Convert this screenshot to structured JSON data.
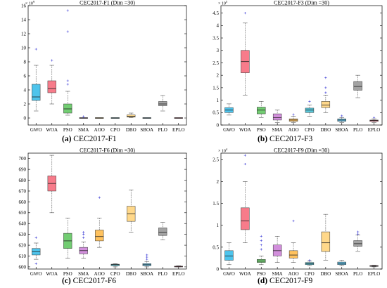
{
  "colors": {
    "GWO": "#4ec4ec",
    "WOA": "#f77b8a",
    "PSO": "#72cd72",
    "SMA": "#d28fdc",
    "AOO": "#ffc25e",
    "CPO": "#58c6d8",
    "DBO": "#ffd88a",
    "SBOA": "#5fbfe6",
    "PLO": "#a3a3a3",
    "EPLO": "#e55670",
    "outlier": "#3b3bd6",
    "median": "#222222"
  },
  "chart_data": [
    {
      "type": "box",
      "title": "CEC2017-F1 (Dim =30)",
      "caption_letter": "(a)",
      "caption_text": "CEC2017-F1",
      "exponent_base": "× 10",
      "exponent_power": "9",
      "categories": [
        "GWO",
        "WOA",
        "PSO",
        "SMA",
        "AOO",
        "CPO",
        "DBO",
        "SBOA",
        "PLO",
        "EPLO"
      ],
      "ylim": [
        -1,
        16
      ],
      "yticks": [
        0,
        2,
        4,
        6,
        8,
        10,
        12,
        14,
        16
      ],
      "ytick_labels": [
        "0",
        "2",
        "4",
        "6",
        "8",
        "10",
        "12",
        "14",
        "16"
      ],
      "boxes": [
        {
          "min": 1.0,
          "q1": 2.5,
          "median": 3.0,
          "q3": 4.8,
          "max": 7.5,
          "outliers": [
            9.8
          ]
        },
        {
          "min": 2.0,
          "q1": 3.6,
          "median": 4.2,
          "q3": 5.3,
          "max": 7.5,
          "outliers": [
            8.2
          ]
        },
        {
          "min": 0.4,
          "q1": 0.7,
          "median": 1.3,
          "q3": 2.0,
          "max": 3.8,
          "outliers": [
            4.8,
            5.3,
            12.3,
            15.3
          ]
        },
        {
          "min": 0.0,
          "q1": 0.0,
          "median": 0.0,
          "q3": 0.0,
          "max": 0.0,
          "outliers": [
            0.2
          ]
        },
        {
          "min": 0.0,
          "q1": 0.0,
          "median": 0.0,
          "q3": 0.0,
          "max": 0.0,
          "outliers": []
        },
        {
          "min": 0.0,
          "q1": 0.0,
          "median": 0.0,
          "q3": 0.0,
          "max": 0.0,
          "outliers": []
        },
        {
          "min": 0.05,
          "q1": 0.12,
          "median": 0.25,
          "q3": 0.45,
          "max": 0.7,
          "outliers": []
        },
        {
          "min": 0.0,
          "q1": 0.0,
          "median": 0.0,
          "q3": 0.0,
          "max": 0.0,
          "outliers": []
        },
        {
          "min": 1.0,
          "q1": 1.75,
          "median": 2.0,
          "q3": 2.35,
          "max": 3.2,
          "outliers": []
        },
        {
          "min": 0.0,
          "q1": 0.0,
          "median": 0.0,
          "q3": 0.0,
          "max": 0.0,
          "outliers": []
        }
      ]
    },
    {
      "type": "box",
      "title": "CEC2017-F3 (Dim =30)",
      "caption_letter": "(b)",
      "caption_text": "CEC2017-F3",
      "exponent_base": "× 10",
      "exponent_power": "5",
      "categories": [
        "GWO",
        "WOA",
        "PSO",
        "SMA",
        "AOO",
        "CPO",
        "DBO",
        "SBOA",
        "PLO",
        "EPLO"
      ],
      "ylim": [
        0,
        4.8
      ],
      "yticks": [
        0,
        0.5,
        1,
        1.5,
        2,
        2.5,
        3,
        3.5,
        4,
        4.5
      ],
      "ytick_labels": [
        "0",
        "0.5",
        "1",
        "1.5",
        "2",
        "2.5",
        "3",
        "3.5",
        "4",
        "4.5"
      ],
      "boxes": [
        {
          "min": 0.4,
          "q1": 0.5,
          "median": 0.6,
          "q3": 0.7,
          "max": 0.85,
          "outliers": []
        },
        {
          "min": 1.2,
          "q1": 2.1,
          "median": 2.55,
          "q3": 3.0,
          "max": 4.1,
          "outliers": [
            4.5
          ]
        },
        {
          "min": 0.3,
          "q1": 0.45,
          "median": 0.6,
          "q3": 0.72,
          "max": 0.95,
          "outliers": []
        },
        {
          "min": 0.1,
          "q1": 0.2,
          "median": 0.3,
          "q3": 0.45,
          "max": 0.6,
          "outliers": []
        },
        {
          "min": 0.1,
          "q1": 0.15,
          "median": 0.2,
          "q3": 0.25,
          "max": 0.35,
          "outliers": [
            0.42
          ]
        },
        {
          "min": 0.35,
          "q1": 0.5,
          "median": 0.6,
          "q3": 0.68,
          "max": 0.8,
          "outliers": [
            0.95
          ]
        },
        {
          "min": 0.5,
          "q1": 0.7,
          "median": 0.8,
          "q3": 0.95,
          "max": 1.2,
          "outliers": [
            1.3,
            1.5,
            1.9
          ]
        },
        {
          "min": 0.1,
          "q1": 0.15,
          "median": 0.2,
          "q3": 0.25,
          "max": 0.3,
          "outliers": [
            0.37
          ]
        },
        {
          "min": 1.1,
          "q1": 1.4,
          "median": 1.55,
          "q3": 1.75,
          "max": 2.0,
          "outliers": []
        },
        {
          "min": 0.1,
          "q1": 0.15,
          "median": 0.18,
          "q3": 0.2,
          "max": 0.25,
          "outliers": [
            0.3
          ]
        }
      ]
    },
    {
      "type": "box",
      "title": "CEC2017-F6 (Dim =30)",
      "caption_letter": "(c)",
      "caption_text": "CEC2017-F6",
      "exponent_base": "",
      "exponent_power": "",
      "categories": [
        "GWO",
        "WOA",
        "PSO",
        "SMA",
        "AOO",
        "CPO",
        "DBO",
        "SBOA",
        "PLO",
        "EPLO"
      ],
      "ylim": [
        598,
        705
      ],
      "yticks": [
        600,
        610,
        620,
        630,
        640,
        650,
        660,
        670,
        680,
        690,
        700
      ],
      "ytick_labels": [
        "600",
        "610",
        "620",
        "630",
        "640",
        "650",
        "660",
        "670",
        "680",
        "690",
        "700"
      ],
      "boxes": [
        {
          "min": 607,
          "q1": 611,
          "median": 614,
          "q3": 617,
          "max": 622,
          "outliers": [
            627,
            603
          ]
        },
        {
          "min": 650,
          "q1": 670,
          "median": 677,
          "q3": 684,
          "max": 703,
          "outliers": []
        },
        {
          "min": 608,
          "q1": 617,
          "median": 624,
          "q3": 631,
          "max": 645,
          "outliers": []
        },
        {
          "min": 608,
          "q1": 612,
          "median": 615,
          "q3": 618,
          "max": 623,
          "outliers": [
            627,
            630,
            632
          ]
        },
        {
          "min": 618,
          "q1": 624,
          "median": 628,
          "q3": 634,
          "max": 645,
          "outliers": [
            664
          ]
        },
        {
          "min": 600,
          "q1": 601,
          "median": 602,
          "q3": 602.5,
          "max": 603,
          "outliers": []
        },
        {
          "min": 632,
          "q1": 642,
          "median": 649,
          "q3": 656,
          "max": 671,
          "outliers": []
        },
        {
          "min": 600,
          "q1": 601,
          "median": 602,
          "q3": 603,
          "max": 605,
          "outliers": [
            607,
            609,
            611
          ]
        },
        {
          "min": 625,
          "q1": 629,
          "median": 632,
          "q3": 636,
          "max": 641,
          "outliers": []
        },
        {
          "min": 600,
          "q1": 600.1,
          "median": 600.3,
          "q3": 600.5,
          "max": 601,
          "outliers": []
        }
      ]
    },
    {
      "type": "box",
      "title": "CEC2017-F9 (Dim =30)",
      "caption_letter": "(d)",
      "caption_text": "CEC2017-F9",
      "exponent_base": "× 10",
      "exponent_power": "4",
      "categories": [
        "GWO",
        "WOA",
        "PSO",
        "SMA",
        "AOO",
        "CPO",
        "DBO",
        "SBOA",
        "PLO",
        "EPLO"
      ],
      "ylim": [
        0,
        2.65
      ],
      "yticks": [
        0,
        0.5,
        1,
        1.5,
        2,
        2.5
      ],
      "ytick_labels": [
        "0",
        "0.5",
        "1",
        "1.5",
        "2",
        "2.5"
      ],
      "boxes": [
        {
          "min": 0.1,
          "q1": 0.2,
          "median": 0.3,
          "q3": 0.42,
          "max": 0.6,
          "outliers": []
        },
        {
          "min": 0.6,
          "q1": 0.9,
          "median": 1.1,
          "q3": 1.4,
          "max": 2.0,
          "outliers": [
            2.4,
            2.6
          ]
        },
        {
          "min": 0.1,
          "q1": 0.15,
          "median": 0.18,
          "q3": 0.22,
          "max": 0.3,
          "outliers": [
            0.45,
            0.55,
            0.65,
            0.75
          ]
        },
        {
          "min": 0.15,
          "q1": 0.3,
          "median": 0.42,
          "q3": 0.55,
          "max": 0.75,
          "outliers": []
        },
        {
          "min": 0.15,
          "q1": 0.25,
          "median": 0.32,
          "q3": 0.42,
          "max": 0.6,
          "outliers": [
            1.1
          ]
        },
        {
          "min": 0.08,
          "q1": 0.1,
          "median": 0.12,
          "q3": 0.15,
          "max": 0.18,
          "outliers": [
            0.2
          ]
        },
        {
          "min": 0.2,
          "q1": 0.4,
          "median": 0.6,
          "q3": 0.85,
          "max": 1.25,
          "outliers": []
        },
        {
          "min": 0.08,
          "q1": 0.1,
          "median": 0.13,
          "q3": 0.16,
          "max": 0.2,
          "outliers": []
        },
        {
          "min": 0.4,
          "q1": 0.52,
          "median": 0.58,
          "q3": 0.65,
          "max": 0.78,
          "outliers": [
            0.8,
            0.85
          ]
        },
        {
          "min": 0.05,
          "q1": 0.06,
          "median": 0.07,
          "q3": 0.08,
          "max": 0.09,
          "outliers": []
        }
      ]
    }
  ]
}
